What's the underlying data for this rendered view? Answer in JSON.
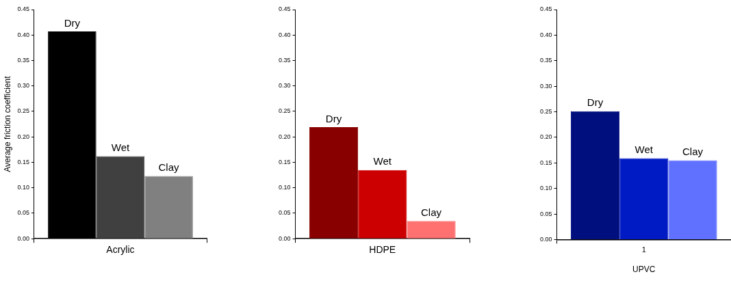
{
  "chart_data": [
    {
      "type": "bar",
      "categories": [
        "Acrylic"
      ],
      "ylabel": "Average friction coefficient",
      "ylim": [
        0,
        0.45
      ],
      "yticks": [
        {
          "value": 0,
          "label": "0.00"
        },
        {
          "value": 0.05,
          "label": "0.05"
        },
        {
          "value": 0.1,
          "label": "0.10"
        },
        {
          "value": 0.15,
          "label": "0.15"
        },
        {
          "value": 0.2,
          "label": "0.20"
        },
        {
          "value": 0.25,
          "label": "0.25"
        },
        {
          "value": 0.3,
          "label": "0.30"
        },
        {
          "value": 0.35,
          "label": "0.35"
        },
        {
          "value": 0.4,
          "label": "0.40"
        },
        {
          "value": 0.45,
          "label": "0.45"
        }
      ],
      "legend": false,
      "series": [
        {
          "name": "Dry",
          "color": "#000000",
          "values": [
            0.407
          ]
        },
        {
          "name": "Wet",
          "color": "#404040",
          "values": [
            0.162
          ]
        },
        {
          "name": "Clay",
          "color": "#808080",
          "values": [
            0.123
          ]
        }
      ]
    },
    {
      "type": "bar",
      "categories": [
        "HDPE"
      ],
      "ylim": [
        0,
        0.45
      ],
      "yticks": [
        {
          "value": 0,
          "label": "0.00"
        },
        {
          "value": 0.05,
          "label": "0.05"
        },
        {
          "value": 0.1,
          "label": "0.10"
        },
        {
          "value": 0.15,
          "label": "0.15"
        },
        {
          "value": 0.2,
          "label": "0.20"
        },
        {
          "value": 0.25,
          "label": "0.25"
        },
        {
          "value": 0.3,
          "label": "0.30"
        },
        {
          "value": 0.35,
          "label": "0.35"
        },
        {
          "value": 0.4,
          "label": "0.40"
        },
        {
          "value": 0.45,
          "label": "0.45"
        }
      ],
      "legend": false,
      "series": [
        {
          "name": "Dry",
          "color": "#880000",
          "values": [
            0.219
          ]
        },
        {
          "name": "Wet",
          "color": "#cc0000",
          "values": [
            0.135
          ]
        },
        {
          "name": "Clay",
          "color": "#ff7070",
          "values": [
            0.035
          ]
        }
      ]
    },
    {
      "type": "bar",
      "categories": [
        "1"
      ],
      "xlabel": "UPVC",
      "ylim": [
        0,
        0.45
      ],
      "yticks": [
        {
          "value": 0,
          "label": "0.00"
        },
        {
          "value": 0.05,
          "label": "0.05"
        },
        {
          "value": 0.1,
          "label": "0.10"
        },
        {
          "value": 0.15,
          "label": "0.15"
        },
        {
          "value": 0.2,
          "label": "0.20"
        },
        {
          "value": 0.25,
          "label": "0.25"
        },
        {
          "value": 0.3,
          "label": "0.30"
        },
        {
          "value": 0.35,
          "label": "0.35"
        },
        {
          "value": 0.4,
          "label": "0.40"
        },
        {
          "value": 0.45,
          "label": "0.45"
        }
      ],
      "legend": false,
      "series": [
        {
          "name": "Dry",
          "color": "#000f7e",
          "values": [
            0.251
          ]
        },
        {
          "name": "Wet",
          "color": "#001ac4",
          "values": [
            0.159
          ]
        },
        {
          "name": "Clay",
          "color": "#6070ff",
          "values": [
            0.155
          ]
        }
      ]
    }
  ]
}
